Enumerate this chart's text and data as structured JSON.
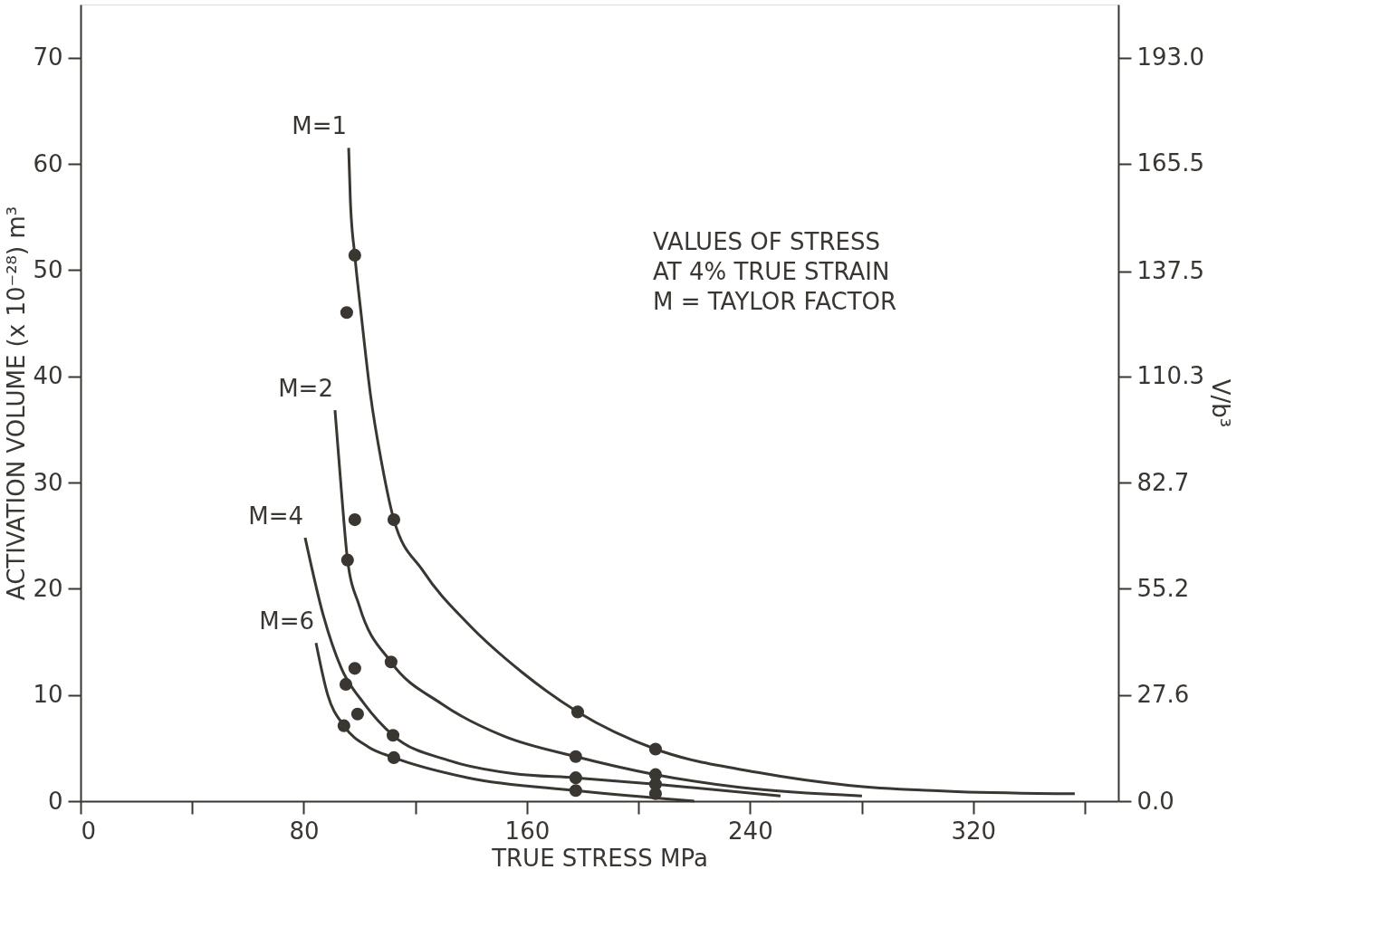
{
  "chart_data": {
    "type": "line",
    "xlabel": "TRUE STRESS MPa",
    "ylabel": "ACTIVATION VOLUME (x 10⁻²⁸) m³",
    "y2label": "V/b³",
    "xlim": [
      0,
      372
    ],
    "ylim": [
      0,
      75
    ],
    "y2lim": [
      0,
      206.8
    ],
    "xticks": [
      0,
      {
        "value": 40,
        "label": null
      },
      80,
      {
        "value": 120,
        "label": null
      },
      160,
      {
        "value": 200,
        "label": null
      },
      240,
      {
        "value": 280,
        "label": null
      },
      320,
      {
        "value": 360,
        "label": null
      }
    ],
    "yticks": [
      0,
      10,
      20,
      30,
      40,
      50,
      60,
      70
    ],
    "y2ticks": [
      {
        "value": 0,
        "label": "0.0"
      },
      27.6,
      55.2,
      82.7,
      110.3,
      137.5,
      165.5,
      {
        "value": 193,
        "label": "193.0"
      }
    ],
    "grid": false,
    "annotations": [
      "VALUES OF STRESS",
      "AT 4% TRUE STRAIN",
      "M = TAYLOR FACTOR"
    ],
    "series": [
      {
        "name": "M=1",
        "color": "#3a3631",
        "x": [
          96.1,
          96.7,
          98.3,
          100.6,
          103.9,
          108.1,
          112.3,
          122.7,
          138.9,
          158.4,
          178.2,
          206.1,
          242.8,
          275.2,
          314.2,
          356.4
        ],
        "values": [
          61.5,
          56.6,
          51.4,
          45.8,
          38.3,
          31.6,
          26.5,
          21.7,
          16.7,
          12.1,
          8.4,
          4.9,
          2.7,
          1.5,
          0.9,
          0.7
        ]
      },
      {
        "name": "M=2",
        "color": "#3a3631",
        "x": [
          91.2,
          93.5,
          95.7,
          99.9,
          111.3,
          129.2,
          151.9,
          177.5,
          206.1,
          236.3,
          280.1
        ],
        "values": [
          36.8,
          29.2,
          22.7,
          18.4,
          13.1,
          9.2,
          6.1,
          4.2,
          2.5,
          1.3,
          0.5
        ]
      },
      {
        "name": "M=4",
        "color": "#3a3631",
        "x": [
          80.5,
          87,
          93.5,
          101.6,
          112,
          132.4,
          155.1,
          177.5,
          206.1,
          250.9
        ],
        "values": [
          24.8,
          17.5,
          12.5,
          9.2,
          6.2,
          3.8,
          2.6,
          2.2,
          1.6,
          0.5
        ]
      },
      {
        "name": "M=6",
        "color": "#3a3631",
        "x": [
          84.4,
          88.6,
          94.4,
          103.2,
          112.3,
          138.9,
          177.5,
          206.1,
          220
        ],
        "values": [
          14.9,
          10.0,
          7.1,
          5.1,
          4.1,
          2.2,
          1.0,
          0.3,
          0
        ]
      },
      {
        "type": "scatter",
        "marker": "circle",
        "color": "#3a3631",
        "x": [
          98.3,
          95.4,
          112.3,
          178.2,
          206.1,
          98.3,
          95.7,
          111.3,
          177.5,
          206.1,
          98.3,
          95.1,
          112,
          177.5,
          206.1,
          99.3,
          94.4,
          112.3,
          177.5,
          206.1
        ],
        "values": [
          51.4,
          46.0,
          26.5,
          8.4,
          4.9,
          26.5,
          22.7,
          13.1,
          4.2,
          2.5,
          12.5,
          11.0,
          6.2,
          2.2,
          1.6,
          8.2,
          7.1,
          4.1,
          1.0,
          0.7
        ]
      }
    ]
  }
}
